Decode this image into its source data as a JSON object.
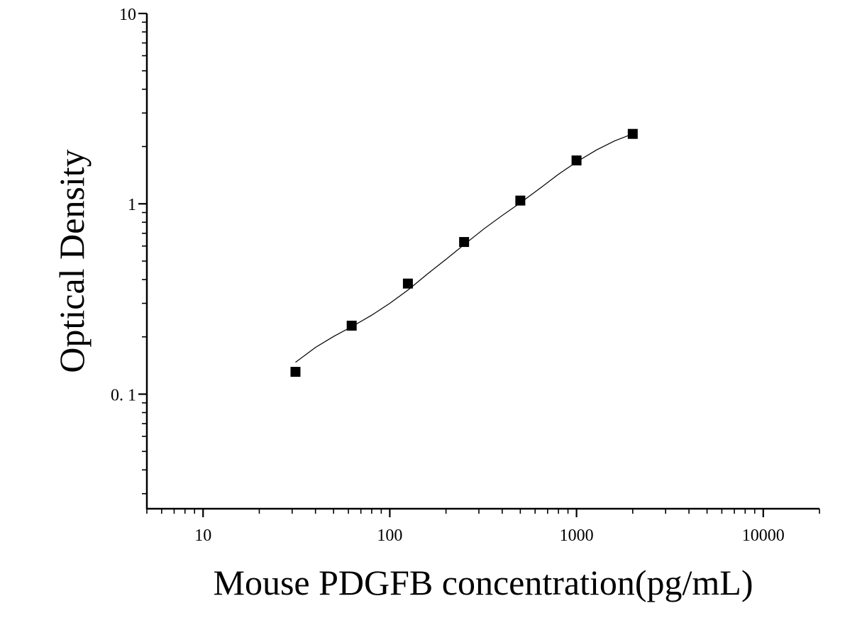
{
  "chart_data": {
    "type": "scatter",
    "xlabel": "Mouse PDGFB concentration(pg/mL)",
    "ylabel": "Optical Density",
    "xscale": "log",
    "yscale": "log",
    "xlim": [
      5,
      20000
    ],
    "ylim": [
      0.025,
      10
    ],
    "x_ticks": [
      10,
      100,
      1000,
      10000
    ],
    "x_tick_labels": [
      "10",
      "100",
      "1000",
      "10000"
    ],
    "y_ticks": [
      0.1,
      1,
      10
    ],
    "y_tick_labels": [
      "0. 1",
      "1",
      "10"
    ],
    "grid": false,
    "series": [
      {
        "marker": "square",
        "color": "#000000",
        "x": [
          31.25,
          62.5,
          125,
          250,
          500,
          1000,
          2000
        ],
        "y": [
          0.131,
          0.229,
          0.381,
          0.63,
          1.04,
          1.69,
          2.33
        ]
      }
    ],
    "fit_curve": {
      "color": "#000000",
      "x": [
        31.25,
        40,
        50,
        62.5,
        80,
        100,
        125,
        160,
        200,
        250,
        320,
        400,
        500,
        640,
        800,
        1000,
        1280,
        1600,
        2000
      ],
      "y": [
        0.147,
        0.176,
        0.201,
        0.226,
        0.26,
        0.3,
        0.352,
        0.43,
        0.511,
        0.61,
        0.74,
        0.868,
        1.012,
        1.21,
        1.43,
        1.66,
        1.92,
        2.14,
        2.33
      ]
    }
  }
}
